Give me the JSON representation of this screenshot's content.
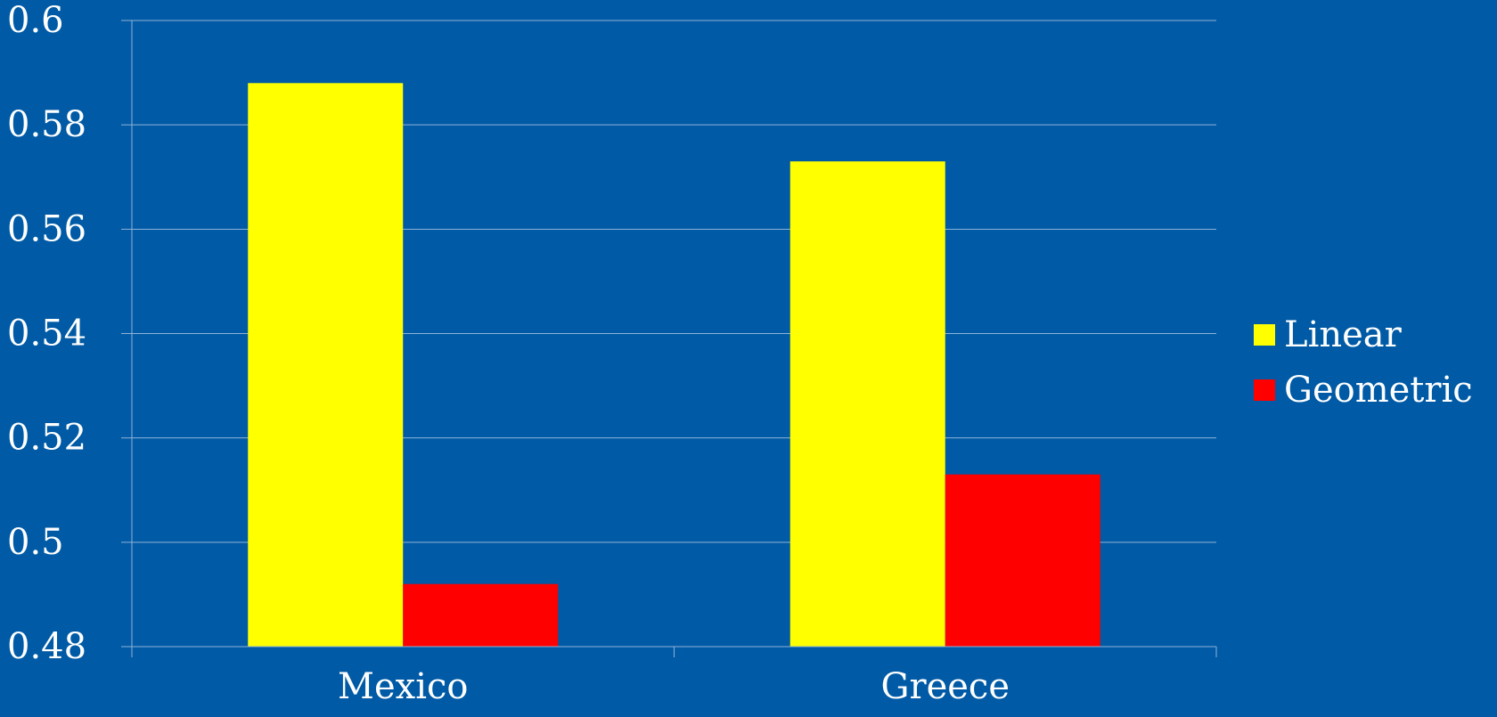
{
  "colors": {
    "background": "#005aa5",
    "gridline": "#8fb3d9",
    "axis": "#8fb3d9",
    "text": "#ffffff"
  },
  "chart_data": {
    "type": "bar",
    "title": "",
    "xlabel": "",
    "ylabel": "",
    "categories": [
      "Mexico",
      "Greece"
    ],
    "series": [
      {
        "name": "Linear",
        "color": "#ffff00",
        "values": [
          0.588,
          0.573
        ]
      },
      {
        "name": "Geometric",
        "color": "#ff0000",
        "values": [
          0.492,
          0.513
        ]
      }
    ],
    "ylim": [
      0.48,
      0.6
    ],
    "yticks": [
      0.48,
      0.5,
      0.52,
      0.54,
      0.56,
      0.58,
      0.6
    ],
    "ytick_labels": [
      "0.48",
      "0.5",
      "0.52",
      "0.54",
      "0.56",
      "0.58",
      "0.6"
    ],
    "grid": true,
    "legend_position": "right"
  }
}
